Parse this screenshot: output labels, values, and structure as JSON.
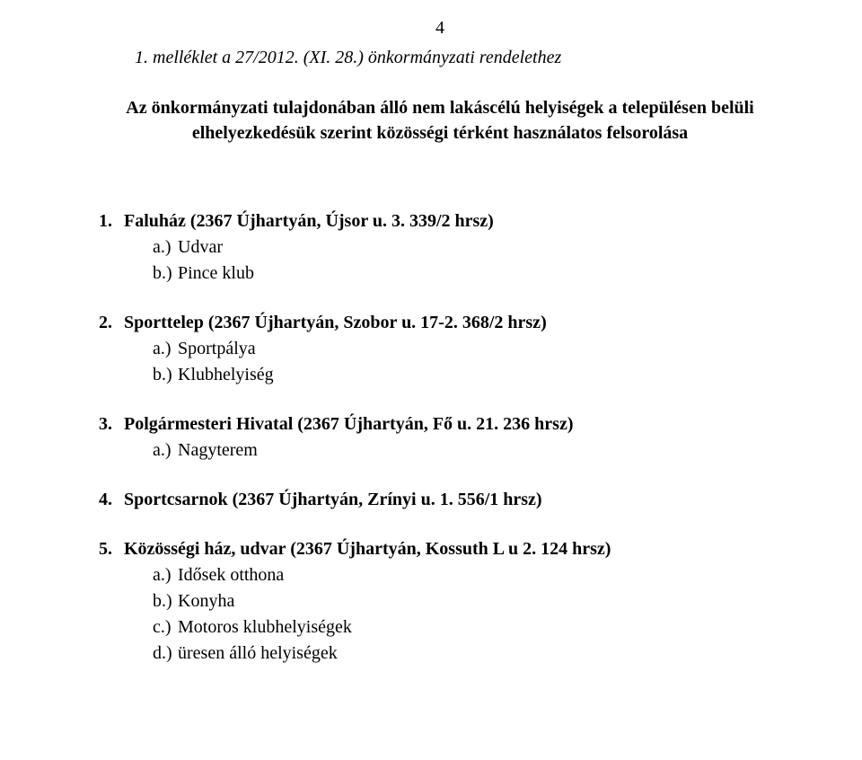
{
  "page_number": "4",
  "appendix_title": "1.  melléklet a 27/2012. (XI. 28.) önkormányzati rendelethez",
  "main_heading": "Az önkormányzati tulajdonában álló nem lakáscélú helyiségek a településen belüli elhelyezkedésük szerint közösségi térként használatos felsorolása",
  "items": [
    {
      "num": "1.",
      "title": "Faluház (2367 Újhartyán, Újsor u. 3. 339/2 hrsz)",
      "subs": [
        {
          "letter": "a.)",
          "text": "Udvar"
        },
        {
          "letter": "b.)",
          "text": "Pince klub"
        }
      ]
    },
    {
      "num": "2.",
      "title": "Sporttelep (2367 Újhartyán, Szobor u. 17-2. 368/2 hrsz)",
      "subs": [
        {
          "letter": "a.)",
          "text": "Sportpálya"
        },
        {
          "letter": "b.)",
          "text": "Klubhelyiség"
        }
      ]
    },
    {
      "num": "3.",
      "title": "Polgármesteri Hivatal (2367 Újhartyán, Fő u. 21. 236 hrsz)",
      "subs": [
        {
          "letter": "a.)",
          "text": "Nagyterem"
        }
      ]
    },
    {
      "num": "4.",
      "title": "Sportcsarnok (2367 Újhartyán, Zrínyi u. 1. 556/1 hrsz)",
      "subs": []
    },
    {
      "num": "5.",
      "title": "Közösségi ház, udvar  (2367 Újhartyán, Kossuth L u 2. 124 hrsz)",
      "subs": [
        {
          "letter": "a.)",
          "text": "Idősek otthona"
        },
        {
          "letter": "b.)",
          "text": "Konyha"
        },
        {
          "letter": "c.)",
          "text": "Motoros klubhelyiségek"
        },
        {
          "letter": "d.)",
          "text": "üresen álló helyiségek"
        }
      ]
    }
  ]
}
